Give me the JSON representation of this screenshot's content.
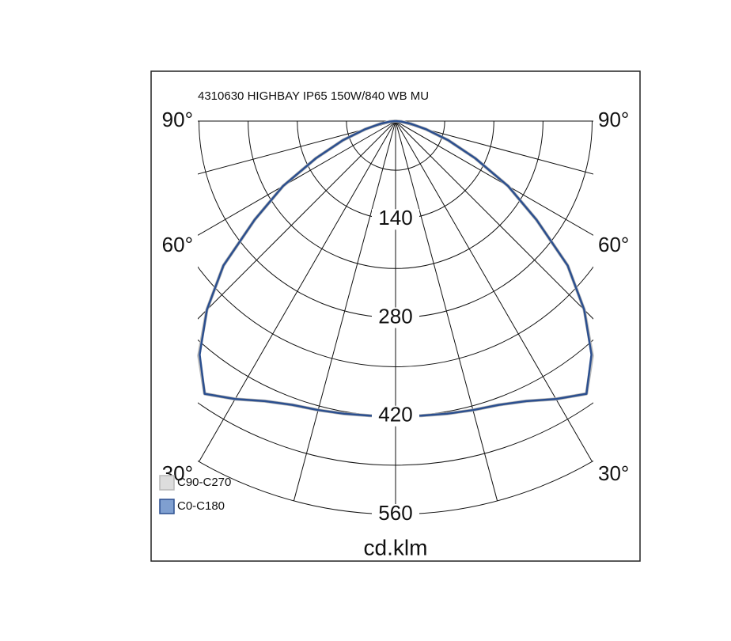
{
  "chart_data": {
    "type": "polar",
    "title": "4310630 HIGHBAY IP65 150W/840 WB MU",
    "unit_label": "cd.klm",
    "x": [
      -90,
      -85,
      -80,
      -75,
      -70,
      -65,
      -60,
      -55,
      -50,
      -45,
      -40,
      -35,
      -30,
      -25,
      -20,
      -15,
      -10,
      -5,
      0,
      5,
      10,
      15,
      20,
      25,
      30,
      35,
      40,
      45,
      50,
      55,
      60,
      65,
      70,
      75,
      80,
      85,
      90
    ],
    "series": [
      {
        "name": "C90-C270",
        "color": "#b8b8b8",
        "values": [
          0,
          8,
          22,
          45,
          80,
          125,
          185,
          245,
          320,
          380,
          436,
          474,
          457,
          440,
          430,
          426,
          423,
          421,
          420,
          421,
          423,
          426,
          430,
          440,
          457,
          474,
          436,
          380,
          320,
          245,
          185,
          125,
          80,
          45,
          22,
          8,
          0
        ]
      },
      {
        "name": "C0-C180",
        "color": "#2b4f8f",
        "values": [
          0,
          8,
          22,
          45,
          80,
          125,
          185,
          245,
          320,
          380,
          434,
          474,
          457,
          440,
          430,
          426,
          423,
          421,
          420,
          421,
          423,
          426,
          430,
          440,
          457,
          474,
          434,
          380,
          320,
          245,
          185,
          125,
          80,
          45,
          22,
          8,
          0
        ]
      }
    ],
    "rlim": [
      0,
      560
    ],
    "rticks": [
      140,
      280,
      420,
      560
    ],
    "rgrid": [
      70,
      210,
      350,
      490
    ],
    "angle_grid": [
      0,
      15,
      30,
      45,
      60,
      75,
      90
    ],
    "angle_ticks": [
      {
        "value": 90,
        "label": "90°"
      },
      {
        "value": 60,
        "label": "60°"
      },
      {
        "value": 30,
        "label": "30°"
      }
    ]
  }
}
